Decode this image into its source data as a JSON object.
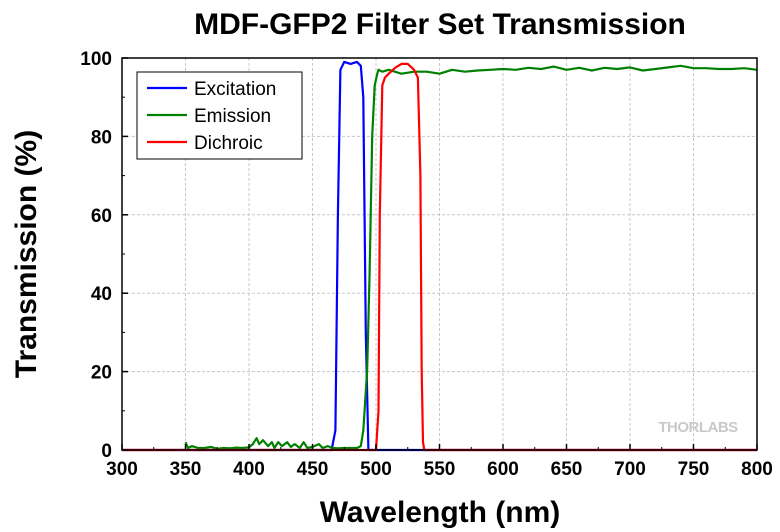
{
  "chart_data": {
    "type": "line",
    "title": "MDF-GFP2 Filter Set Transmission",
    "xlabel": "Wavelength (nm)",
    "ylabel": "Transmission (%)",
    "xlim": [
      300,
      800
    ],
    "ylim": [
      0,
      100
    ],
    "xticks": [
      300,
      350,
      400,
      450,
      500,
      550,
      600,
      650,
      700,
      750,
      800
    ],
    "yticks": [
      0,
      20,
      40,
      60,
      80,
      100
    ],
    "grid": true,
    "legend_position": "top-left",
    "watermark": "THORLABS",
    "series": [
      {
        "name": "Excitation",
        "color": "#0000ff",
        "x": [
          300,
          465,
          468,
          470,
          472,
          475,
          480,
          485,
          488,
          490,
          492,
          494,
          800
        ],
        "y": [
          0,
          0,
          5,
          60,
          97,
          99,
          98.5,
          99,
          98,
          90,
          30,
          0,
          0
        ]
      },
      {
        "name": "Emission",
        "color": "#008000",
        "x": [
          350,
          352,
          355,
          360,
          365,
          370,
          375,
          380,
          385,
          390,
          395,
          400,
          403,
          406,
          408,
          411,
          415,
          418,
          420,
          423,
          426,
          430,
          433,
          436,
          440,
          443,
          446,
          450,
          455,
          458,
          462,
          466,
          470,
          475,
          480,
          485,
          488,
          490,
          493,
          495,
          497,
          499,
          501,
          502,
          505,
          510,
          520,
          530,
          540,
          550,
          560,
          570,
          580,
          590,
          600,
          610,
          620,
          630,
          640,
          650,
          660,
          670,
          680,
          690,
          700,
          710,
          720,
          730,
          740,
          750,
          760,
          770,
          780,
          790,
          800
        ],
        "y": [
          2,
          0.5,
          1,
          0.5,
          0.5,
          0.8,
          0.3,
          0.5,
          0.4,
          0.6,
          0.5,
          0.7,
          1.5,
          3,
          1.5,
          2.5,
          1,
          2,
          0.5,
          2,
          1,
          2,
          0.8,
          1.5,
          0.5,
          2,
          0.5,
          0.8,
          1.5,
          0.5,
          1,
          0.5,
          0.4,
          0.5,
          0.5,
          0.5,
          1,
          5,
          20,
          45,
          80,
          93,
          96,
          97,
          96.5,
          97,
          96,
          96.5,
          96.5,
          96,
          97,
          96.5,
          96.8,
          97,
          97.2,
          97,
          97.5,
          97.2,
          97.8,
          97,
          97.5,
          96.8,
          97.5,
          97.2,
          97.6,
          96.8,
          97.2,
          97.6,
          98,
          97.4,
          97.4,
          97.2,
          97.2,
          97.4,
          97
        ]
      },
      {
        "name": "Dichroic",
        "color": "#ff0000",
        "x": [
          300,
          500,
          502,
          503,
          505,
          507,
          510,
          515,
          520,
          525,
          530,
          533,
          535,
          536,
          537,
          538,
          800
        ],
        "y": [
          0,
          0,
          10,
          60,
          93,
          95,
          96,
          97.5,
          98.5,
          98.5,
          97,
          95,
          70,
          20,
          2,
          0,
          0
        ]
      }
    ]
  }
}
